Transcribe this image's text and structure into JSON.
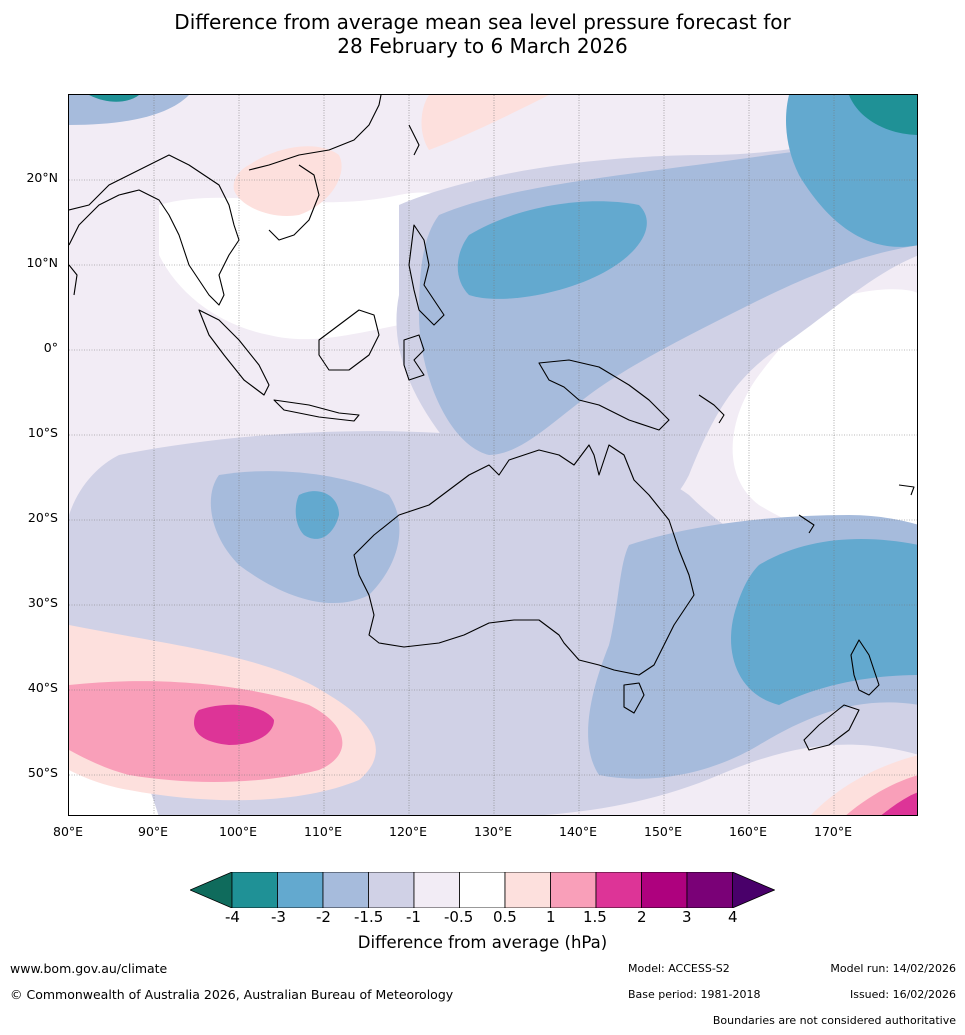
{
  "title": {
    "line1": "Difference from average mean sea level pressure forecast for",
    "line2": "28 February to 6 March 2026"
  },
  "map": {
    "lat_labels": [
      "20°N",
      "10°N",
      "0°",
      "10°S",
      "20°S",
      "30°S",
      "40°S",
      "50°S"
    ],
    "lon_labels": [
      "80°E",
      "90°E",
      "100°E",
      "110°E",
      "120°E",
      "130°E",
      "140°E",
      "150°E",
      "160°E",
      "170°E"
    ]
  },
  "colorbar": {
    "colors": [
      "#0f6b5c",
      "#1f9196",
      "#63a9cf",
      "#a6bbdc",
      "#d0d1e6",
      "#f2ecf5",
      "#ffffff",
      "#fde0dd",
      "#f99fb9",
      "#dd3497",
      "#ae017e",
      "#7a0177",
      "#49006a"
    ],
    "ticks": [
      "-4",
      "-3",
      "-2",
      "-1.5",
      "-1",
      "-0.5",
      "0.5",
      "1",
      "1.5",
      "2",
      "3",
      "4"
    ],
    "title": "Difference from average (hPa)"
  },
  "footer": {
    "website": "www.bom.gov.au/climate",
    "copyright": "© Commonwealth of Australia 2026, Australian Bureau of Meteorology",
    "model": "Model: ACCESS-S2",
    "base_period": "Base period: 1981-2018",
    "model_run": "Model run: 14/02/2026",
    "issued": "Issued: 16/02/2026",
    "boundaries_note": "Boundaries are not considered authoritative"
  }
}
